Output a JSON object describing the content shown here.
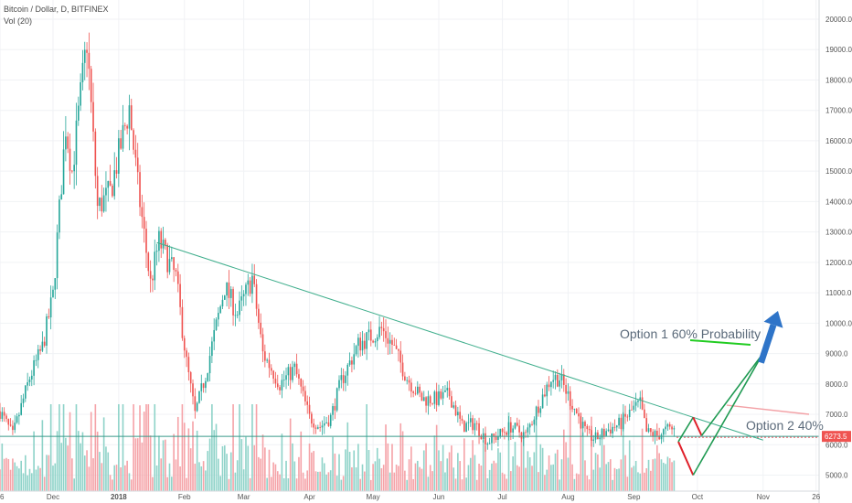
{
  "header": {
    "title": "Bitcoin / Dollar, D, BITFINEX",
    "vol_label": "Vol (20)"
  },
  "colors": {
    "up": "#26a69a",
    "down": "#ef5350",
    "vol_up": "#8fd3c9",
    "vol_down": "#f5a3a8",
    "trend": "#3fae8c",
    "support": "#3a9a8a",
    "arrow": "#2e74c8",
    "green_path": "#1f9a52",
    "red_path": "#e0202a",
    "green_line": "#22cc22",
    "pink_line": "#f3a1a6",
    "price_tag": "#ef5350"
  },
  "chart_data": {
    "type": "candlestick",
    "symbol": "Bitcoin / Dollar",
    "interval": "D",
    "exchange": "BITFINEX",
    "indicator": "Vol (20)",
    "y_axis_ticks": [
      5000,
      6000,
      7000,
      8000,
      9000,
      10000,
      11000,
      12000,
      13000,
      14000,
      15000,
      16000,
      17000,
      18000,
      19000,
      20000
    ],
    "y_tick_labels": [
      "5000.0",
      "6000.0",
      "7000.0",
      "8000.0",
      "9000.0",
      "10000.0",
      "11000.0",
      "12000.0",
      "13000.0",
      "14000.0",
      "15000.0",
      "16000.0",
      "17000.0",
      "18000.0",
      "19000.0",
      "20000.0"
    ],
    "ylim": [
      4500,
      20500
    ],
    "x_axis_labels": [
      {
        "label": "6",
        "date": "2017-11-06"
      },
      {
        "label": "Dec",
        "date": "2017-12-01"
      },
      {
        "label": "2018",
        "date": "2018-01-01"
      },
      {
        "label": "Feb",
        "date": "2018-02-01"
      },
      {
        "label": "Mar",
        "date": "2018-03-01"
      },
      {
        "label": "Apr",
        "date": "2018-04-01"
      },
      {
        "label": "May",
        "date": "2018-05-01"
      },
      {
        "label": "Jun",
        "date": "2018-06-01"
      },
      {
        "label": "Jul",
        "date": "2018-07-01"
      },
      {
        "label": "Aug",
        "date": "2018-08-01"
      },
      {
        "label": "Sep",
        "date": "2018-09-01"
      },
      {
        "label": "Oct",
        "date": "2018-10-01"
      },
      {
        "label": "Nov",
        "date": "2018-11-01"
      },
      {
        "label": "26",
        "date": "2018-11-26"
      }
    ],
    "xlim": [
      "2017-11-06",
      "2018-11-30"
    ],
    "close_path": [
      [
        "2017-11-06",
        7100
      ],
      [
        "2017-11-12",
        6300
      ],
      [
        "2017-11-20",
        8200
      ],
      [
        "2017-11-26",
        9200
      ],
      [
        "2017-12-01",
        10900
      ],
      [
        "2017-12-07",
        16500
      ],
      [
        "2017-12-10",
        15000
      ],
      [
        "2017-12-17",
        19300
      ],
      [
        "2017-12-22",
        13800
      ],
      [
        "2017-12-28",
        14300
      ],
      [
        "2018-01-06",
        17100
      ],
      [
        "2018-01-10",
        14500
      ],
      [
        "2018-01-16",
        11300
      ],
      [
        "2018-01-20",
        12700
      ],
      [
        "2018-01-28",
        11500
      ],
      [
        "2018-02-02",
        8700
      ],
      [
        "2018-02-06",
        7000
      ],
      [
        "2018-02-11",
        8300
      ],
      [
        "2018-02-20",
        11200
      ],
      [
        "2018-02-26",
        10300
      ],
      [
        "2018-03-05",
        11500
      ],
      [
        "2018-03-10",
        9000
      ],
      [
        "2018-03-18",
        8000
      ],
      [
        "2018-03-25",
        8500
      ],
      [
        "2018-04-01",
        6900
      ],
      [
        "2018-04-06",
        6600
      ],
      [
        "2018-04-11",
        6900
      ],
      [
        "2018-04-16",
        8100
      ],
      [
        "2018-04-24",
        9300
      ],
      [
        "2018-05-05",
        9800
      ],
      [
        "2018-05-10",
        9300
      ],
      [
        "2018-05-17",
        8200
      ],
      [
        "2018-05-24",
        7500
      ],
      [
        "2018-05-31",
        7500
      ],
      [
        "2018-06-06",
        7650
      ],
      [
        "2018-06-12",
        6600
      ],
      [
        "2018-06-18",
        6700
      ],
      [
        "2018-06-24",
        6100
      ],
      [
        "2018-06-30",
        6350
      ],
      [
        "2018-07-05",
        6600
      ],
      [
        "2018-07-12",
        6300
      ],
      [
        "2018-07-18",
        7300
      ],
      [
        "2018-07-24",
        8200
      ],
      [
        "2018-07-28",
        8200
      ],
      [
        "2018-08-04",
        7200
      ],
      [
        "2018-08-10",
        6300
      ],
      [
        "2018-08-14",
        6200
      ],
      [
        "2018-08-20",
        6500
      ],
      [
        "2018-08-26",
        6700
      ],
      [
        "2018-09-01",
        7200
      ],
      [
        "2018-09-04",
        7350
      ],
      [
        "2018-09-07",
        6400
      ],
      [
        "2018-09-12",
        6300
      ],
      [
        "2018-09-17",
        6500
      ],
      [
        "2018-09-20",
        6500
      ]
    ],
    "last_price": {
      "value": 6273.5,
      "label": "6273.5"
    },
    "annotations": {
      "trendline": {
        "from": [
          "2018-01-19",
          12650
        ],
        "to": [
          "2018-11-01",
          6150
        ]
      },
      "support": {
        "y": 6273.5,
        "from": "2017-11-06",
        "to": "2018-11-30"
      },
      "option1_path": [
        [
          "2018-09-22",
          6100
        ],
        [
          "2018-09-29",
          5000
        ],
        [
          "2018-11-05",
          9500
        ]
      ],
      "option2_path": [
        [
          "2018-09-22",
          6100
        ],
        [
          "2018-09-29",
          6900
        ],
        [
          "2018-10-03",
          6300
        ],
        [
          "2018-11-02",
          9100
        ]
      ],
      "arrow": {
        "from": [
          "2018-10-31",
          8700
        ],
        "to": [
          "2018-11-08",
          10400
        ]
      },
      "option1_label": "Option 1 60% Probability",
      "option2_label": "Option 2 40%"
    }
  }
}
